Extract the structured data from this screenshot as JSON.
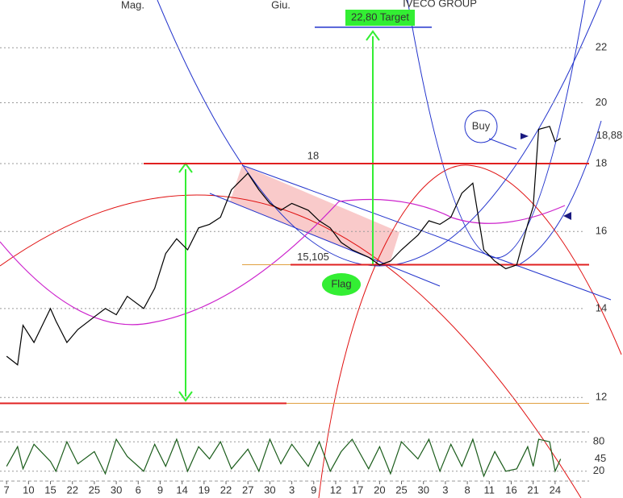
{
  "chart_data": [
    {
      "type": "line",
      "title": "IVECO GROUP",
      "log_scale": true,
      "grid": true,
      "color": "#000000",
      "months": [
        {
          "value": 23,
          "label": "Mag."
        },
        {
          "value": 50,
          "label": "Giu."
        }
      ],
      "x": [
        0,
        2,
        3,
        5,
        8,
        9,
        11,
        13,
        16,
        18,
        20,
        22,
        25,
        27,
        29,
        31,
        33,
        35,
        37,
        39,
        41,
        44,
        46,
        48,
        50,
        52,
        55,
        57,
        59,
        61,
        63,
        66,
        68,
        70,
        72,
        75,
        77,
        79,
        81,
        83,
        85,
        87,
        89,
        91,
        93,
        95,
        96,
        97,
        99,
        100,
        101
      ],
      "values": [
        12.89,
        12.7,
        13.6,
        13.2,
        14.0,
        13.7,
        13.2,
        13.5,
        13.8,
        14.0,
        13.85,
        14.3,
        14.0,
        14.5,
        15.4,
        15.8,
        15.5,
        16.1,
        16.2,
        16.4,
        17.2,
        17.7,
        17.2,
        16.8,
        16.6,
        16.8,
        16.6,
        16.3,
        16.1,
        15.7,
        15.5,
        15.3,
        15.1,
        15.2,
        15.5,
        15.9,
        16.3,
        16.2,
        16.4,
        17.1,
        17.4,
        15.5,
        15.2,
        15.0,
        15.1,
        16.2,
        16.7,
        19.1,
        19.2,
        18.7,
        18.8
      ],
      "xlim": [
        -1.2,
        106.2
      ],
      "xticks": [
        {
          "value": 0,
          "label": "7"
        },
        {
          "value": 4,
          "label": "10"
        },
        {
          "value": 8,
          "label": "15"
        },
        {
          "value": 12,
          "label": "22"
        },
        {
          "value": 16,
          "label": "25"
        },
        {
          "value": 20,
          "label": "30"
        },
        {
          "value": 24,
          "label": "6"
        },
        {
          "value": 28,
          "label": "9"
        },
        {
          "value": 32,
          "label": "14"
        },
        {
          "value": 36,
          "label": "19"
        },
        {
          "value": 40,
          "label": "22"
        },
        {
          "value": 44,
          "label": "27"
        },
        {
          "value": 48,
          "label": "30"
        },
        {
          "value": 52,
          "label": "3"
        },
        {
          "value": 56,
          "label": "9"
        },
        {
          "value": 60,
          "label": "12"
        },
        {
          "value": 64,
          "label": "17"
        },
        {
          "value": 68,
          "label": "20"
        },
        {
          "value": 72,
          "label": "25"
        },
        {
          "value": 76,
          "label": "30"
        },
        {
          "value": 80,
          "label": "3"
        },
        {
          "value": 84,
          "label": "8"
        },
        {
          "value": 88,
          "label": "11"
        },
        {
          "value": 92,
          "label": "16"
        },
        {
          "value": 96,
          "label": "21"
        },
        {
          "value": 100,
          "label": "24"
        }
      ],
      "ylim": [
        11.4,
        23.9
      ],
      "yticks": [
        12,
        14,
        16,
        18,
        20,
        22
      ],
      "levels": [
        {
          "value": 18,
          "label": "18"
        },
        {
          "value": 15.105,
          "label": "15,105"
        },
        {
          "value": 11.88
        }
      ],
      "target": {
        "value": 22.8,
        "label": "22,80 Target"
      },
      "last_price": {
        "value": 18.88,
        "label": "18,88"
      },
      "annotations": [
        "Flag",
        "Buy"
      ]
    },
    {
      "type": "line",
      "color": "#1a5c1a",
      "x": [
        0,
        2,
        3,
        5,
        8,
        9,
        11,
        13,
        16,
        18,
        20,
        22,
        25,
        27,
        29,
        31,
        33,
        35,
        37,
        39,
        41,
        44,
        46,
        48,
        50,
        52,
        55,
        57,
        59,
        61,
        63,
        66,
        68,
        70,
        72,
        75,
        77,
        79,
        81,
        83,
        85,
        87,
        89,
        91,
        93,
        95,
        96,
        97,
        99,
        100,
        101
      ],
      "values": [
        30,
        70,
        25,
        75,
        40,
        20,
        80,
        35,
        60,
        15,
        85,
        50,
        20,
        75,
        30,
        85,
        20,
        70,
        45,
        80,
        25,
        65,
        20,
        85,
        35,
        75,
        30,
        80,
        20,
        60,
        85,
        25,
        70,
        15,
        80,
        45,
        85,
        20,
        75,
        30,
        85,
        10,
        60,
        20,
        25,
        70,
        30,
        85,
        80,
        20,
        45
      ],
      "xlim": [
        -1.2,
        106.2
      ],
      "ylim": [
        0,
        100
      ],
      "yticks": [
        20,
        80
      ]
    }
  ]
}
